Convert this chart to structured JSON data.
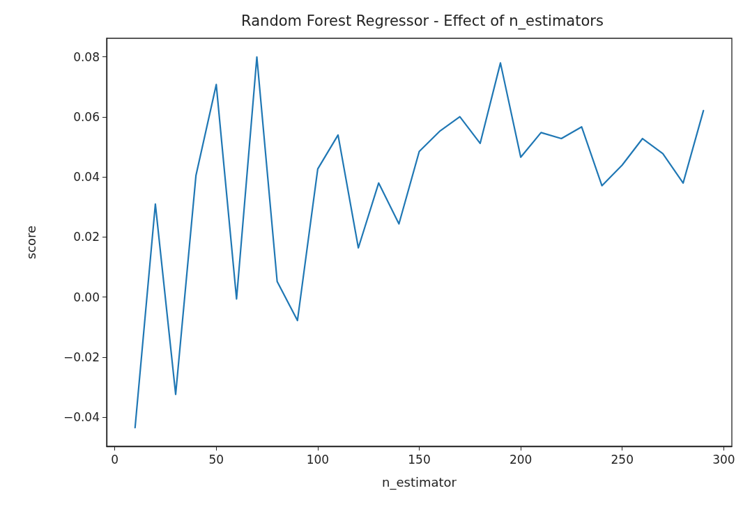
{
  "chart_data": {
    "type": "line",
    "title": "Random Forest Regressor - Effect of n_estimators",
    "xlabel": "n_estimator",
    "ylabel": "score",
    "x": [
      10,
      20,
      30,
      40,
      50,
      60,
      70,
      80,
      90,
      100,
      110,
      120,
      130,
      140,
      150,
      160,
      170,
      180,
      190,
      200,
      210,
      220,
      230,
      240,
      250,
      260,
      270,
      280,
      290
    ],
    "series": [
      {
        "color": "#1f77b4",
        "values": [
          -0.0435,
          0.031,
          -0.0324,
          0.0405,
          0.0708,
          -0.0006,
          0.08,
          0.0052,
          -0.0078,
          0.0427,
          0.054,
          0.0164,
          0.038,
          0.0244,
          0.0485,
          0.0552,
          0.0601,
          0.0512,
          0.078,
          0.0466,
          0.0548,
          0.0528,
          0.0567,
          0.0371,
          0.044,
          0.0528,
          0.0478,
          0.038,
          0.0621
        ]
      }
    ],
    "xlim": [
      -4,
      304
    ],
    "xticks": [
      0,
      50,
      100,
      150,
      200,
      250,
      300
    ],
    "ylim": [
      -0.0497,
      0.0862
    ],
    "yticks": [
      {
        "value": -0.04,
        "label": "−0.04"
      },
      {
        "value": -0.02,
        "label": "−0.02"
      },
      {
        "value": 0,
        "label": "0.00"
      },
      0.02,
      0.04,
      0.06,
      0.08
    ],
    "grid": false,
    "marker": "none",
    "line_style": "solid"
  }
}
